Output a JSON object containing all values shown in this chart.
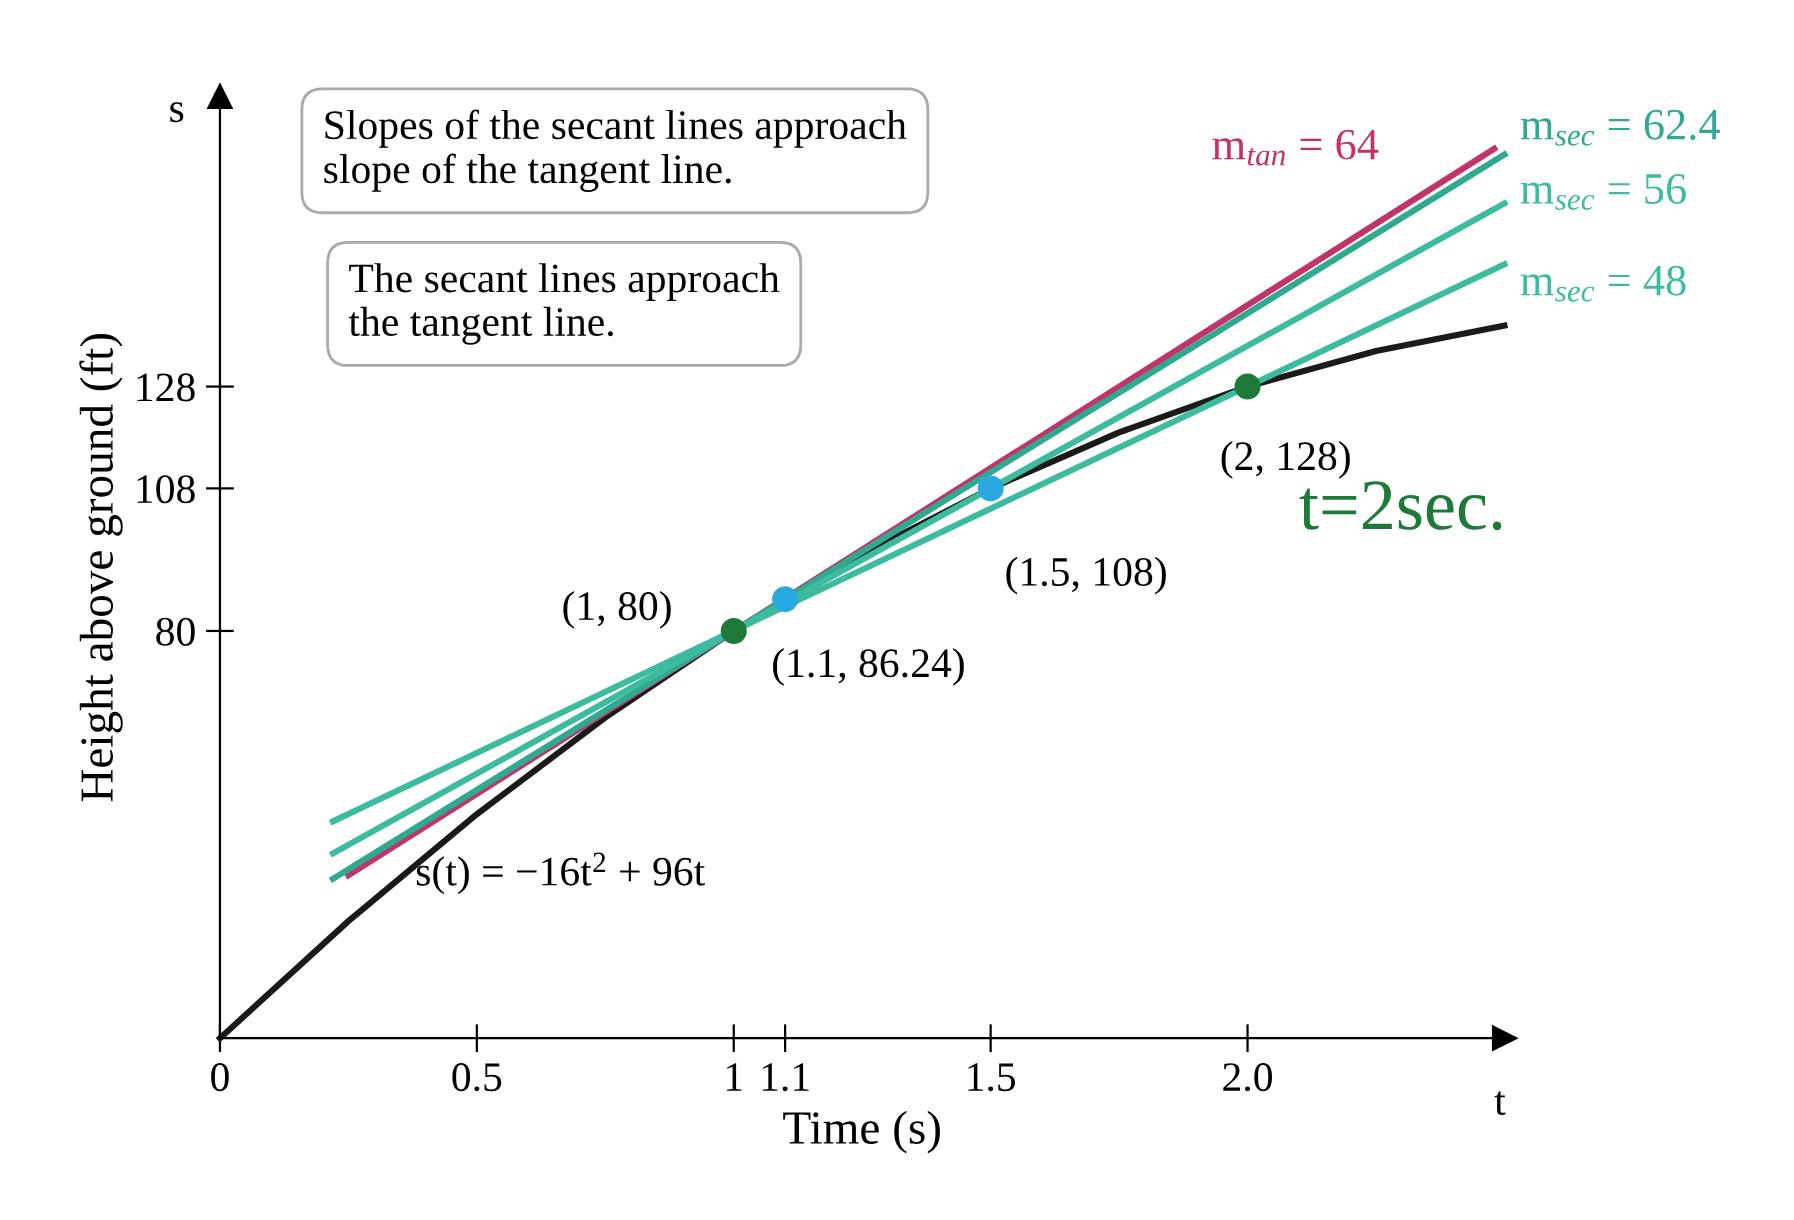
{
  "chart_data": {
    "type": "line",
    "xlabel": "Time (s)",
    "ylabel": "Height above ground (ft)",
    "xlim": [
      0,
      2.5
    ],
    "ylim": [
      0,
      185
    ],
    "xticks": [
      {
        "value": 0,
        "label": "0"
      },
      0.5,
      1,
      1.1,
      1.5,
      {
        "value": 2,
        "label": "2.0"
      }
    ],
    "yticks": [
      80,
      108,
      128
    ],
    "grid": false,
    "legend": false,
    "marker": "none",
    "line_style": "solid",
    "series": [
      {
        "x": [
          0,
          0.25,
          0.5,
          0.75,
          1,
          1.25,
          1.5,
          1.75,
          2,
          2.25,
          2.5
        ],
        "values": [
          0,
          23,
          44,
          63,
          80,
          95,
          108,
          119,
          128,
          135,
          140
        ],
        "color": "#1a1a1a"
      },
      {
        "name": "m$_{tan}$ = 64",
        "x": [
          0.25,
          2.48
        ],
        "values": [
          32,
          174.7
        ],
        "color": "#c2336a"
      },
      {
        "name": "m$_{sec}$ = 62.4",
        "x": [
          0.22,
          2.5
        ],
        "values": [
          31.3,
          173.6
        ],
        "color": "#2fa98f"
      },
      {
        "name": "m$_{sec}$ = 56",
        "x": [
          0.22,
          2.5
        ],
        "values": [
          36.3,
          164
        ],
        "color": "#3dbb9f"
      },
      {
        "name": "m$_{sec}$ = 48",
        "x": [
          0.22,
          2.5
        ],
        "values": [
          42.6,
          152
        ],
        "color": "#3dbb9f"
      },
      {
        "type": "scatter",
        "marker": "circle",
        "x": [
          1,
          1.1,
          1.5,
          2
        ],
        "values": [
          80,
          86.24,
          108,
          128
        ],
        "colors": [
          "#1f7a3a",
          "#2aa8e0",
          "#2aa8e0",
          "#1f7a3a"
        ]
      }
    ],
    "annotations": [
      {
        "text": "(1, 80)",
        "x": 1,
        "y": 80
      },
      {
        "text": "(1.1, 86.24)",
        "x": 1.1,
        "y": 86.24
      },
      {
        "text": "(1.5, 108)",
        "x": 1.5,
        "y": 108
      },
      {
        "text": "(2, 128)",
        "x": 2,
        "y": 128
      },
      "s(t) = −16t$^{2}$ + 96t",
      "Slopes of the secant lines approach\nslope of the tangent line.",
      "The secant lines approach\nthe tangent line.",
      "s",
      "t",
      "t=2sec."
    ]
  }
}
